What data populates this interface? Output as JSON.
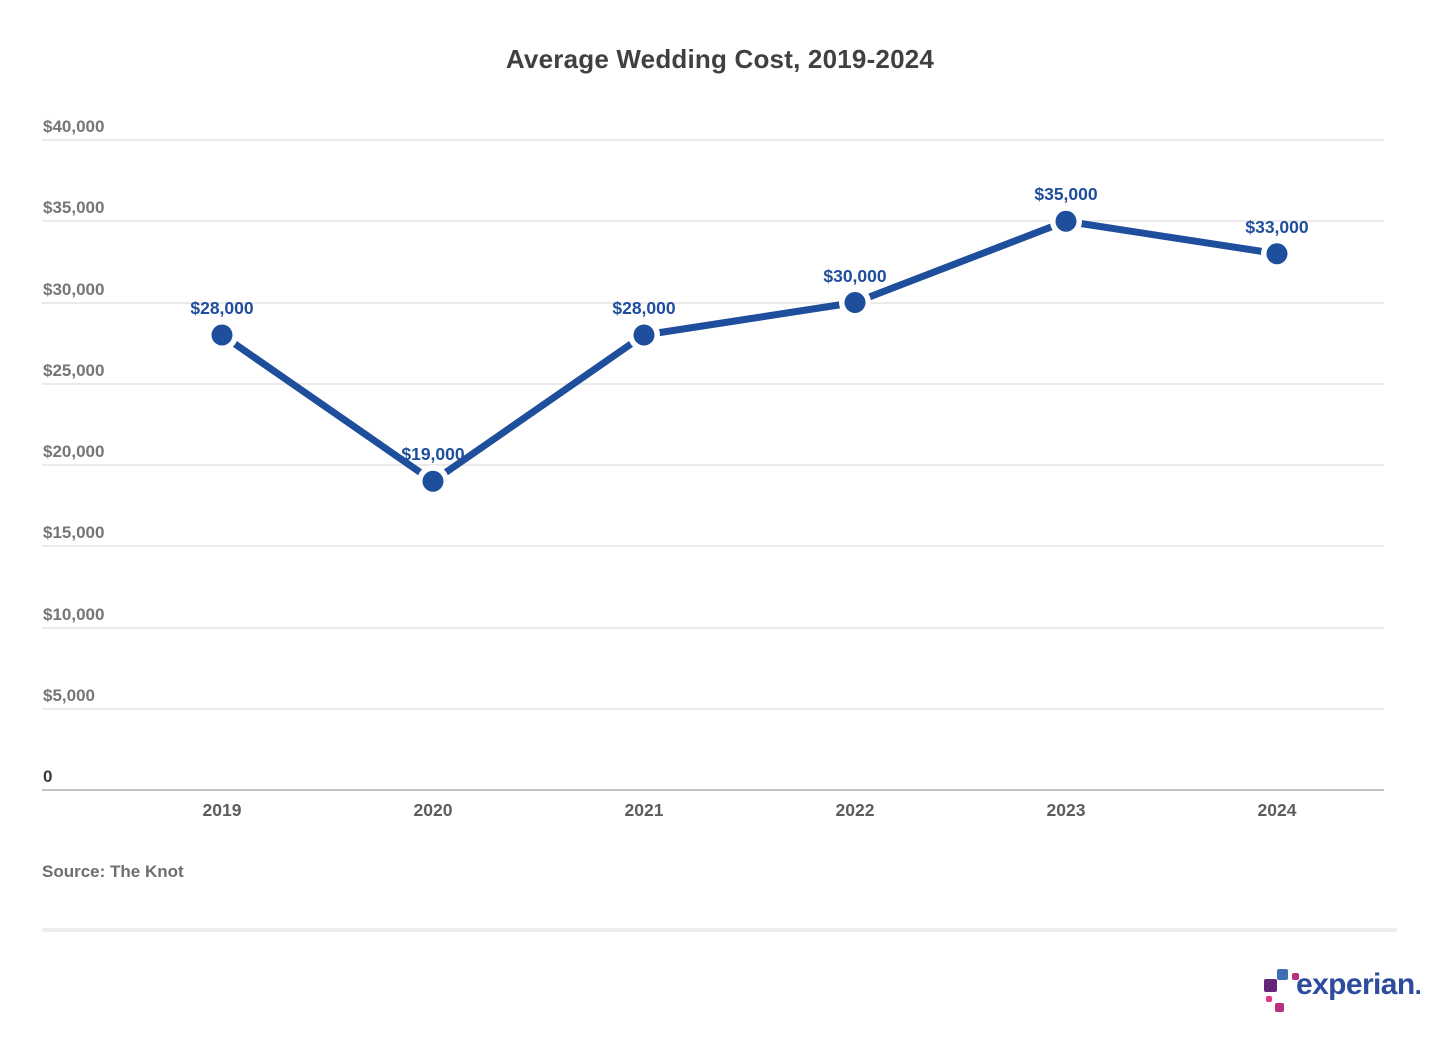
{
  "chart_data": {
    "type": "line",
    "title": "Average Wedding Cost, 2019-2024",
    "categories": [
      "2019",
      "2020",
      "2021",
      "2022",
      "2023",
      "2024"
    ],
    "series": [
      {
        "name": "Average wedding cost",
        "values": [
          28000,
          19000,
          28000,
          30000,
          35000,
          33000
        ]
      }
    ],
    "point_labels": [
      "$28,000",
      "$19,000",
      "$28,000",
      "$30,000",
      "$35,000",
      "$33,000"
    ],
    "xlabel": "",
    "ylabel": "",
    "ylim": [
      0,
      40000
    ],
    "ytick_interval": 5000,
    "yticks": [
      {
        "value": 40000,
        "label": "$40,000"
      },
      {
        "value": 35000,
        "label": "$35,000"
      },
      {
        "value": 30000,
        "label": "$30,000"
      },
      {
        "value": 25000,
        "label": "$25,000"
      },
      {
        "value": 20000,
        "label": "$20,000"
      },
      {
        "value": 15000,
        "label": "$15,000"
      },
      {
        "value": 10000,
        "label": "$10,000"
      },
      {
        "value": 5000,
        "label": "$5,000"
      },
      {
        "value": 0,
        "label": "0"
      }
    ],
    "grid": "horizontal",
    "legend": "none",
    "line_color": "#1E4E9C"
  },
  "footer": {
    "source": "Source: The Knot"
  },
  "branding": {
    "wordmark": "experian",
    "trademark": ".",
    "logo_colors": {
      "blue": "#406EB3",
      "purple": "#632678",
      "magenta": "#BA2F7D",
      "pink": "#E63888"
    }
  },
  "colors": {
    "line": "#1E4E9C",
    "grid": "#EAEAEA",
    "zero_line": "#C4C4C4",
    "title_text": "#404040",
    "ytick_text": "#767676",
    "xtick_text": "#5D5D5D",
    "source_text": "#6E6E6E",
    "wordmark_text": "#2E4C9E"
  }
}
